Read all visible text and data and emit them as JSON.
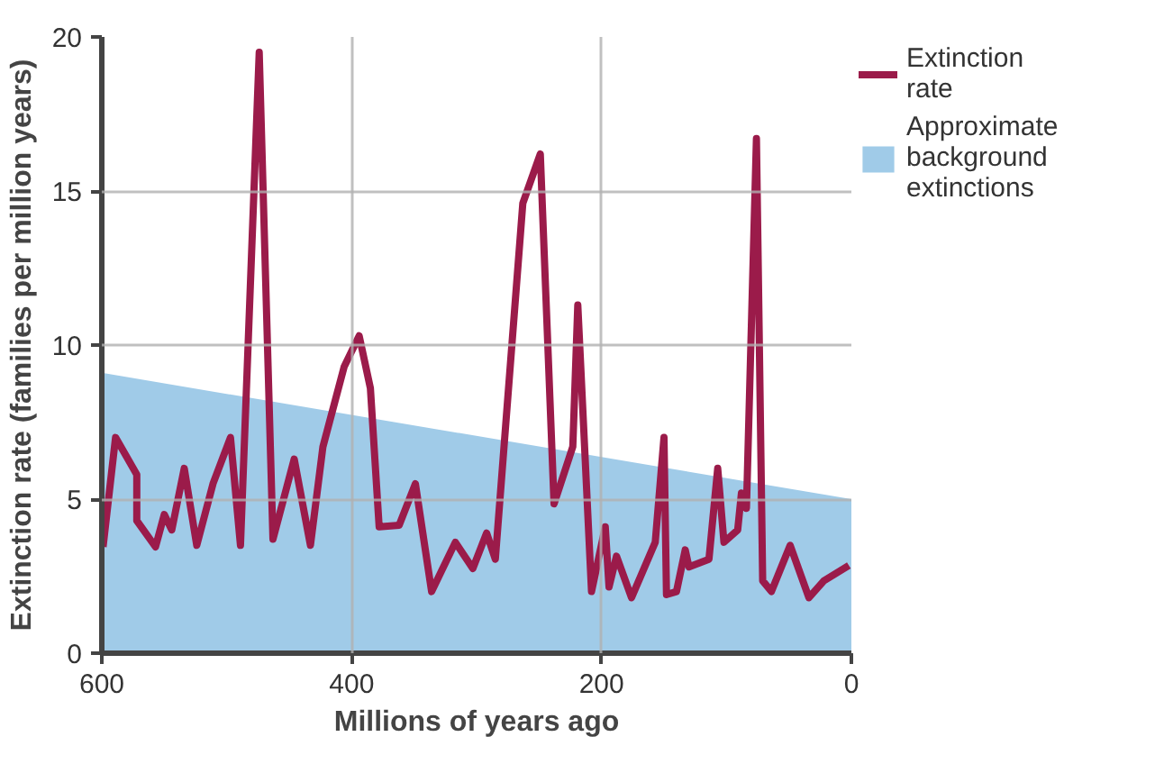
{
  "chart_data": {
    "type": "line",
    "xlabel": "Millions of years ago",
    "ylabel": "Extinction rate (families per million years)",
    "xlim": [
      600,
      0
    ],
    "xticks": [
      600,
      400,
      200,
      0
    ],
    "ylim": [
      0,
      20
    ],
    "yticks": [
      0,
      5,
      10,
      15,
      20
    ],
    "grid": true,
    "legend": "top right",
    "line_style": "solid",
    "series": [
      {
        "name": "Approximate background extinctions",
        "type": "area",
        "color": "#a0cbe8",
        "x": [
          600,
          0
        ],
        "values": [
          9.1,
          5.0
        ]
      },
      {
        "name": "Extinction rate",
        "color": "#9b1b4a",
        "x": [
          599,
          589,
          572,
          572,
          557,
          550,
          544,
          534,
          524,
          511,
          497,
          489,
          474,
          463,
          446,
          433,
          423,
          406,
          394,
          385,
          378,
          362,
          349,
          336,
          317,
          303,
          292,
          285,
          263,
          249,
          238,
          223,
          219,
          208,
          197,
          194,
          188,
          176,
          157,
          150,
          148,
          140,
          133,
          130,
          114,
          107,
          102,
          91,
          88,
          84,
          76,
          71,
          64,
          49,
          34,
          22,
          2
        ],
        "values": [
          3.45,
          7.0,
          5.8,
          4.3,
          3.45,
          4.5,
          4.0,
          6.0,
          3.5,
          5.5,
          7.0,
          3.5,
          19.5,
          3.7,
          6.3,
          3.5,
          6.7,
          9.3,
          10.3,
          8.6,
          4.1,
          4.15,
          5.5,
          2.0,
          3.6,
          2.75,
          3.9,
          3.05,
          14.6,
          16.2,
          4.85,
          6.7,
          11.3,
          2.0,
          4.1,
          2.15,
          3.15,
          1.8,
          3.6,
          7.0,
          1.9,
          2.0,
          3.35,
          2.8,
          3.05,
          6.0,
          3.6,
          4.0,
          5.2,
          4.7,
          16.7,
          2.35,
          2.0,
          3.5,
          1.8,
          2.35,
          2.85
        ]
      }
    ]
  }
}
